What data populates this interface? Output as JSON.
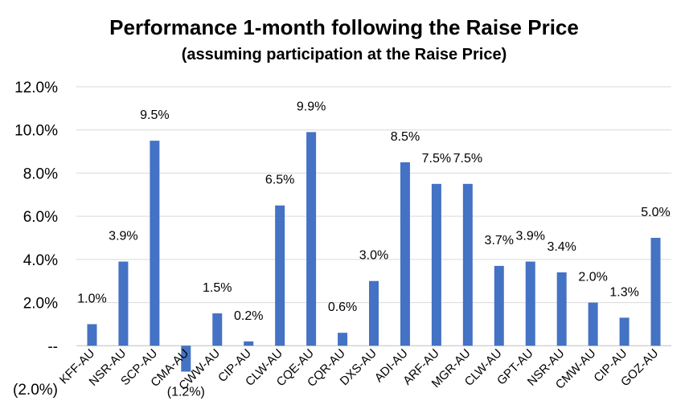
{
  "chart_data": {
    "type": "bar",
    "title": "Performance 1-month following the Raise Price",
    "subtitle": "(assuming participation at the Raise Price)",
    "categories": [
      "KFF-AU",
      "NSR-AU",
      "SCP-AU",
      "CMA-AU",
      "CWW-AU",
      "CIP-AU",
      "CLW-AU",
      "CQE-AU",
      "CQR-AU",
      "DXS-AU",
      "ADI-AU",
      "ARF-AU",
      "MGR-AU",
      "CLW-AU",
      "GPT-AU",
      "NSR-AU",
      "CMW-AU",
      "CIP-AU",
      "GOZ-AU"
    ],
    "values": [
      1.0,
      3.9,
      9.5,
      -1.2,
      1.5,
      0.2,
      6.5,
      9.9,
      0.6,
      3.0,
      8.5,
      7.5,
      7.5,
      3.7,
      3.9,
      3.4,
      2.0,
      1.3,
      5.0
    ],
    "data_labels": [
      "1.0%",
      "3.9%",
      "9.5%",
      "(1.2%)",
      "1.5%",
      "0.2%",
      "6.5%",
      "9.9%",
      "0.6%",
      "3.0%",
      "8.5%",
      "7.5%",
      "7.5%",
      "3.7%",
      "3.9%",
      "3.4%",
      "2.0%",
      "1.3%",
      "5.0%"
    ],
    "ylim": [
      -2.0,
      12.0
    ],
    "yticks": [
      -2.0,
      0.0,
      2.0,
      4.0,
      6.0,
      8.0,
      10.0,
      12.0
    ],
    "ytick_labels": [
      "(2.0%)",
      "--",
      "2.0%",
      "4.0%",
      "6.0%",
      "8.0%",
      "10.0%",
      "12.0%"
    ],
    "xlabel": "",
    "ylabel": "",
    "grid": true,
    "legend": "none",
    "bar_color": "#4472c4"
  }
}
